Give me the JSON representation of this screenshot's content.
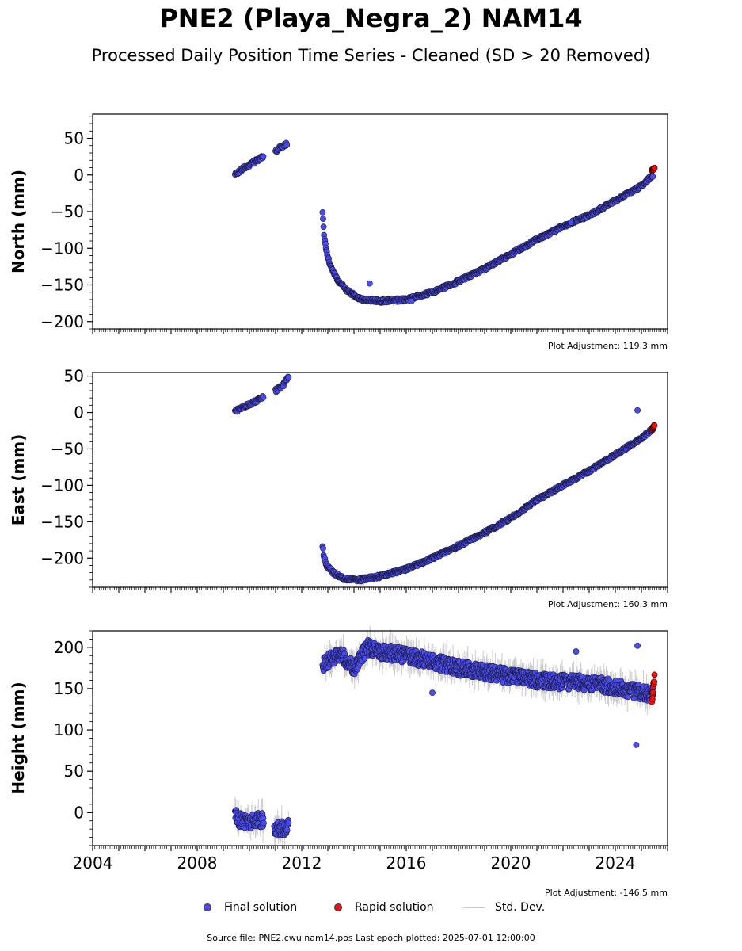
{
  "title": "PNE2 (Playa_Negra_2) NAM14",
  "subtitle": "Processed Daily Position Time Series - Cleaned (SD > 20 Removed)",
  "legend": {
    "final": "Final solution",
    "rapid": "Rapid solution",
    "std": "Std. Dev."
  },
  "footer": "Source file: PNE2.cwu.nam14.pos  Last epoch plotted: 2025-07-01 12:00:00",
  "colors": {
    "final": "#4b4bf0",
    "rapid": "#ee1111",
    "std": "#cccccc",
    "edge": "#1a1a40"
  },
  "chart_data": [
    {
      "type": "scatter",
      "ylabel": "North (mm)",
      "xlim": [
        2004,
        2026
      ],
      "ylim": [
        -210,
        83
      ],
      "yticks": [
        50,
        0,
        -50,
        -100,
        -150,
        -200
      ],
      "ytick_labels": [
        "50",
        "0",
        "−50",
        "−100",
        "−150",
        "−200"
      ],
      "adjustment": "Plot Adjustment: 119.3 mm",
      "final_segments": [
        {
          "x": [
            2009.45,
            2009.8,
            2010.2,
            2010.55
          ],
          "y": [
            0,
            10,
            18,
            25
          ]
        },
        {
          "x": [
            2011.0,
            2011.2,
            2011.45
          ],
          "y": [
            32,
            38,
            42
          ]
        },
        {
          "x": [
            2012.8,
            2012.85,
            2012.95,
            2013.1,
            2013.4,
            2013.8,
            2014.3,
            2015.0,
            2016.0,
            2017.0,
            2018.0,
            2019.0,
            2020.0,
            2021.0,
            2022.0,
            2023.0,
            2024.0,
            2025.0,
            2025.45
          ],
          "y": [
            -50,
            -80,
            -105,
            -125,
            -145,
            -160,
            -170,
            -172,
            -170,
            -160,
            -145,
            -128,
            -108,
            -88,
            -70,
            -55,
            -35,
            -15,
            0
          ]
        }
      ],
      "outliers": [
        {
          "x": 2014.6,
          "y": -148
        },
        {
          "x": 2016.2,
          "y": -172
        },
        {
          "x": 2022.3,
          "y": -65
        }
      ],
      "rapid": {
        "x": [
          2025.4,
          2025.5
        ],
        "y": [
          6,
          10
        ]
      }
    },
    {
      "type": "scatter",
      "ylabel": "East (mm)",
      "xlim": [
        2004,
        2026
      ],
      "ylim": [
        -240,
        55
      ],
      "yticks": [
        50,
        0,
        -50,
        -100,
        -150,
        -200
      ],
      "ytick_labels": [
        "50",
        "0",
        "−50",
        "−100",
        "−150",
        "−200"
      ],
      "adjustment": "Plot Adjustment: 160.3 mm",
      "final_segments": [
        {
          "x": [
            2009.45,
            2009.8,
            2010.2,
            2010.55
          ],
          "y": [
            2,
            8,
            15,
            22
          ]
        },
        {
          "x": [
            2011.0,
            2011.3,
            2011.5
          ],
          "y": [
            30,
            38,
            50
          ]
        },
        {
          "x": [
            2012.8,
            2012.85,
            2012.95,
            2013.2,
            2013.6,
            2014.2,
            2015.0,
            2016.0,
            2017.0,
            2018.0,
            2019.0,
            2020.0,
            2021.0,
            2022.0,
            2023.0,
            2024.0,
            2025.0,
            2025.45
          ],
          "y": [
            -183,
            -198,
            -210,
            -220,
            -228,
            -230,
            -225,
            -215,
            -200,
            -183,
            -165,
            -145,
            -120,
            -100,
            -80,
            -58,
            -35,
            -22
          ]
        }
      ],
      "outliers": [
        {
          "x": 2024.85,
          "y": 3
        }
      ],
      "rapid": {
        "x": [
          2025.4,
          2025.5
        ],
        "y": [
          -23,
          -17
        ]
      }
    },
    {
      "type": "scatter",
      "ylabel": "Height (mm)",
      "xlim": [
        2004,
        2026
      ],
      "ylim": [
        -40,
        220
      ],
      "yticks": [
        200,
        150,
        100,
        50,
        0
      ],
      "ytick_labels": [
        "200",
        "150",
        "100",
        "50",
        "0"
      ],
      "xticks": [
        2004,
        2008,
        2012,
        2016,
        2020,
        2024
      ],
      "xtick_labels": [
        "2004",
        "2008",
        "2012",
        "2016",
        "2020",
        "2024"
      ],
      "adjustment": "Plot Adjustment: -146.5 mm",
      "final_segments": [
        {
          "x": [
            2009.45,
            2009.8,
            2010.2,
            2010.55
          ],
          "y": [
            -5,
            -12,
            -10,
            -8
          ]
        },
        {
          "x": [
            2010.95,
            2011.2,
            2011.5
          ],
          "y": [
            -22,
            -20,
            -18
          ]
        },
        {
          "x": [
            2012.8,
            2013.5,
            2014.0,
            2014.5,
            2015.0,
            2016.0,
            2017.0,
            2018.0,
            2019.0,
            2020.0,
            2021.0,
            2022.0,
            2023.0,
            2024.0,
            2025.0,
            2025.45
          ],
          "y": [
            180,
            192,
            175,
            200,
            195,
            190,
            183,
            175,
            170,
            165,
            160,
            158,
            157,
            152,
            145,
            142
          ]
        }
      ],
      "outliers": [
        {
          "x": 2024.8,
          "y": 82
        },
        {
          "x": 2024.85,
          "y": 202
        },
        {
          "x": 2017.0,
          "y": 145
        },
        {
          "x": 2022.5,
          "y": 195
        }
      ],
      "rapid": {
        "x": [
          2025.4,
          2025.45,
          2025.5
        ],
        "y": [
          135,
          150,
          165
        ]
      }
    }
  ]
}
